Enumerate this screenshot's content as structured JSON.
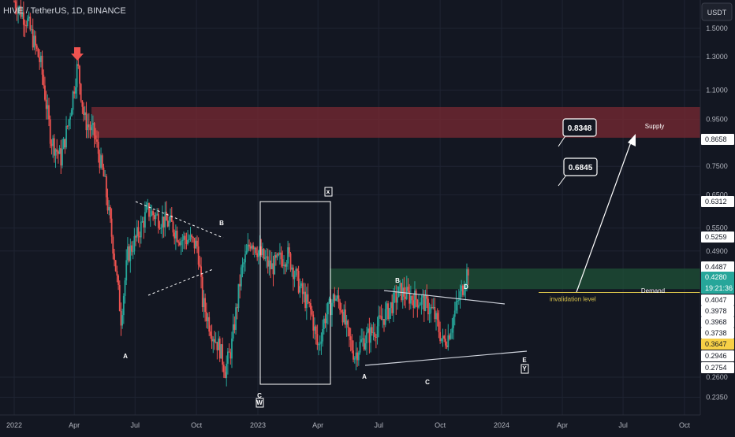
{
  "header": {
    "title": "HIVE / TetherUS, 1D, BINANCE"
  },
  "currency": "USDT",
  "colors": {
    "background": "#131722",
    "up": "#26a69a",
    "down": "#ef5350",
    "supply_zone": "#7a2a33",
    "demand_zone": "#1e4d36",
    "invalidation_line": "#d6c04a"
  },
  "chart_data": {
    "type": "candlestick",
    "symbol": "HIVE/USDT",
    "interval": "1D",
    "exchange": "BINANCE",
    "y_scale": "log",
    "y_ticks": [
      "1.5000",
      "1.3000",
      "1.1000",
      "0.9500",
      "0.7500",
      "0.6500",
      "0.5500",
      "0.4900",
      "0.2600",
      "0.2350"
    ],
    "x_ticks": [
      "2022",
      "Apr",
      "Jul",
      "Oct",
      "2023",
      "Apr",
      "Jul",
      "Oct",
      "2024",
      "Apr",
      "Jul",
      "Oct"
    ],
    "price_labels": [
      {
        "value": "0.8658",
        "style": "white"
      },
      {
        "value": "0.6312",
        "style": "white"
      },
      {
        "value": "0.5259",
        "style": "white"
      },
      {
        "value": "0.4487",
        "style": "white"
      },
      {
        "value": "0.4280",
        "time": "19:21:36",
        "style": "green"
      },
      {
        "value": "0.4047",
        "style": "white"
      },
      {
        "value": "0.3978",
        "style": "white"
      },
      {
        "value": "0.3968",
        "style": "white"
      },
      {
        "value": "0.3738",
        "style": "white"
      },
      {
        "value": "0.3647",
        "style": "yellow"
      },
      {
        "value": "0.2946",
        "style": "white"
      },
      {
        "value": "0.2754",
        "style": "white"
      }
    ],
    "zones": [
      {
        "name": "Supply",
        "low": 0.8658,
        "high": 1.01
      },
      {
        "name": "Demand",
        "low": 0.4047,
        "high": 0.4487
      }
    ],
    "lines": [
      {
        "name": "invalidation level",
        "value": 0.3978
      }
    ],
    "callouts": [
      "0.8348",
      "0.6845"
    ],
    "labels": [
      "B",
      "A",
      "x",
      "C",
      "W",
      "B",
      "D",
      "A",
      "C",
      "E",
      "Y"
    ],
    "zone_labels": [
      "Supply",
      "Demand"
    ]
  }
}
